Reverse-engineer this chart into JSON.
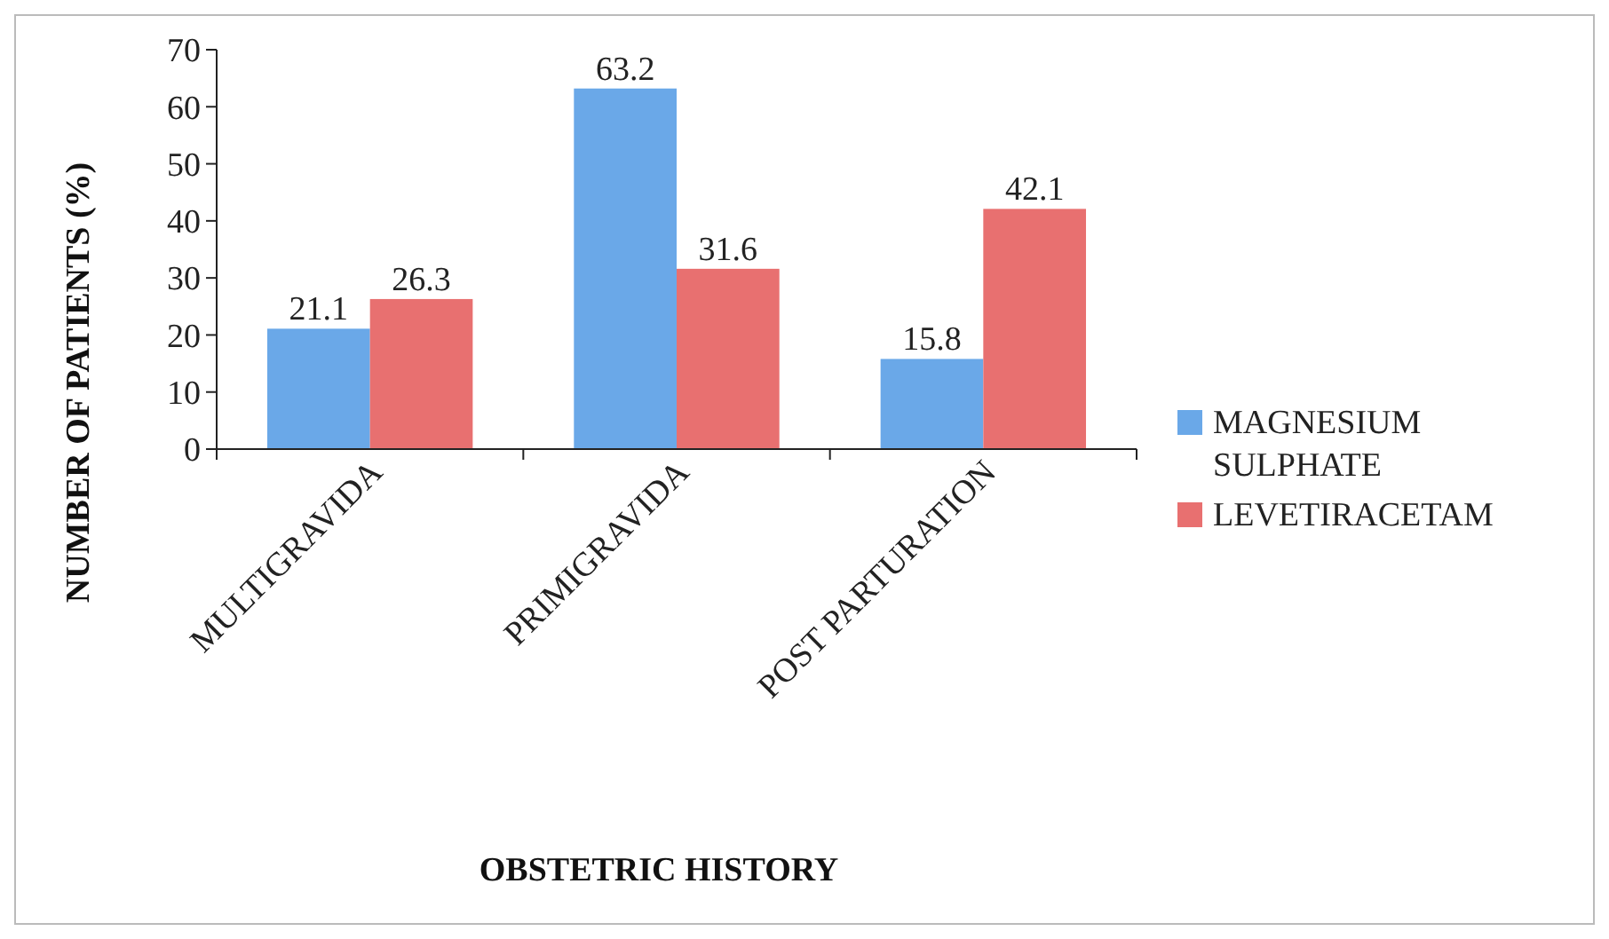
{
  "chart_data": {
    "type": "bar",
    "xlabel": "OBSTETRIC HISTORY",
    "ylabel": "NUMBER OF PATIENTS (%)",
    "categories": [
      "MULTIGRAVIDA",
      "PRIMIGRAVIDA",
      "POST PARTURATION"
    ],
    "series": [
      {
        "name": "MAGNESIUM SULPHATE",
        "color": "#6aa8e8",
        "values": [
          21.1,
          63.2,
          15.8
        ]
      },
      {
        "name": "LEVETIRACETAM",
        "color": "#e87070",
        "values": [
          26.3,
          31.6,
          42.1
        ]
      }
    ],
    "ylim": [
      0,
      70
    ],
    "yticks": [
      0,
      10,
      20,
      30,
      40,
      50,
      60,
      70
    ],
    "data_labels": true,
    "legend": "right",
    "grid": false
  }
}
